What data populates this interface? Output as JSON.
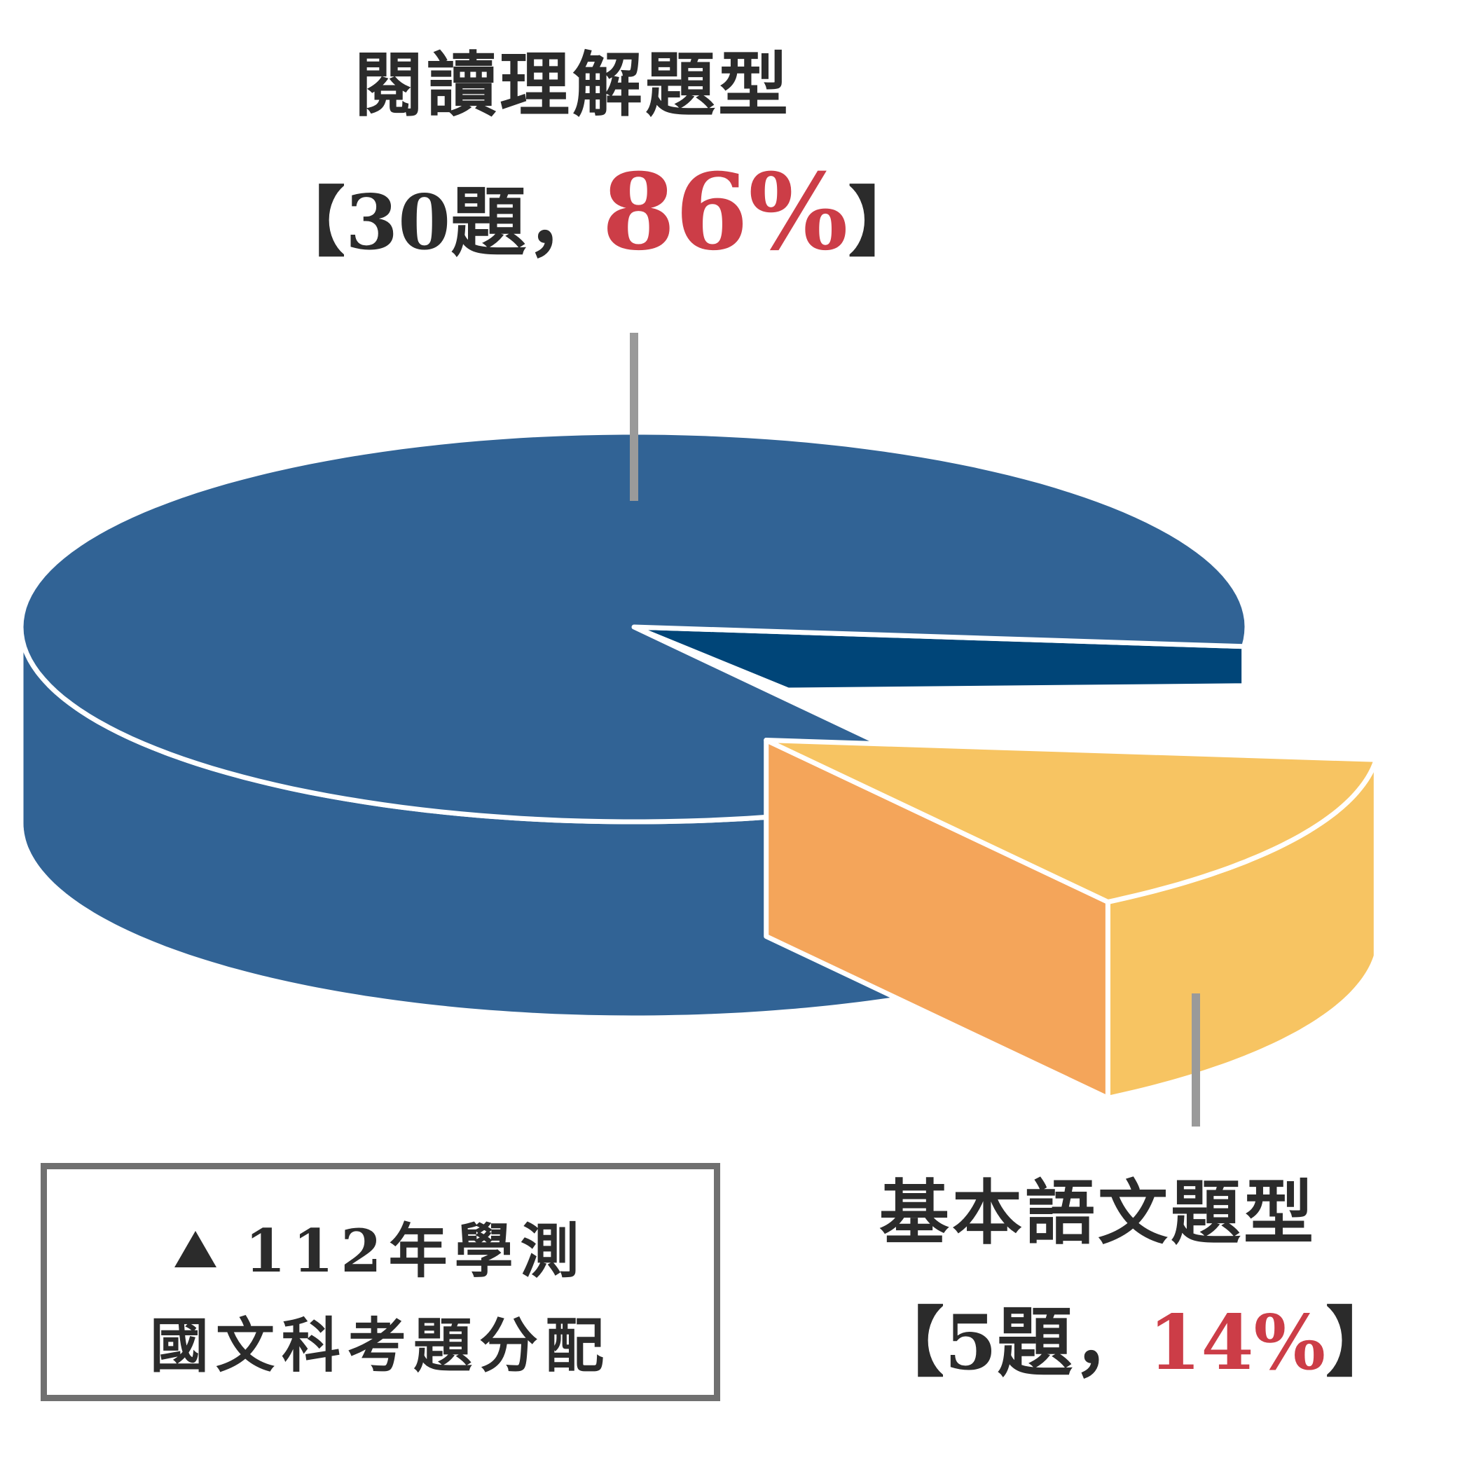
{
  "chart_data": {
    "type": "pie",
    "style": "3d-exploded",
    "slices": [
      {
        "label": "閱讀理解題型",
        "count_label": "30題",
        "percent_label": "86%",
        "value": 86,
        "color": "#316395",
        "side_color": "#004578"
      },
      {
        "label": "基本語文題型",
        "count_label": "5題",
        "percent_label": "14%",
        "value": 14,
        "color": "#f7c462",
        "side_color": "#f4a55a",
        "exploded": true
      }
    ],
    "caption": {
      "marker": "▲",
      "line1": "112年學測",
      "line2": "國文科考題分配"
    }
  },
  "labels": {
    "open_bracket": "【",
    "close_bracket": "】",
    "separator": "，"
  }
}
